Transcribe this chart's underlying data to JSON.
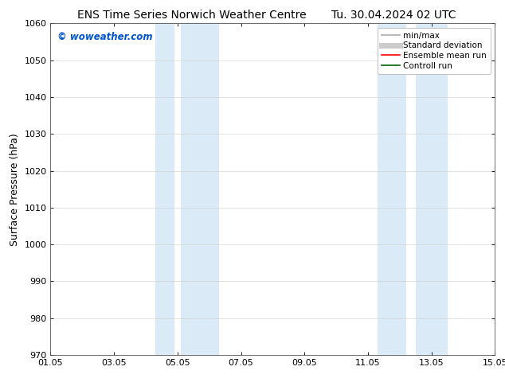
{
  "title_left": "ENS Time Series Norwich Weather Centre",
  "title_right": "Tu. 30.04.2024 02 UTC",
  "ylabel": "Surface Pressure (hPa)",
  "ylim": [
    970,
    1060
  ],
  "yticks": [
    970,
    980,
    990,
    1000,
    1010,
    1020,
    1030,
    1040,
    1050,
    1060
  ],
  "xlim_start": 0,
  "xlim_end": 14,
  "xtick_labels": [
    "01.05",
    "03.05",
    "05.05",
    "07.05",
    "09.05",
    "11.05",
    "13.05",
    "15.05"
  ],
  "xtick_positions": [
    0,
    2,
    4,
    6,
    8,
    10,
    12,
    14
  ],
  "shaded_regions": [
    {
      "x_start": 3.3,
      "x_end": 3.9,
      "color": "#daeaf6"
    },
    {
      "x_start": 4.1,
      "x_end": 5.3,
      "color": "#daeaf6"
    },
    {
      "x_start": 10.3,
      "x_end": 11.2,
      "color": "#daeaf6"
    },
    {
      "x_start": 11.5,
      "x_end": 12.5,
      "color": "#daeaf6"
    }
  ],
  "watermark_text": "© woweather.com",
  "watermark_color": "#0055cc",
  "legend_items": [
    {
      "label": "min/max",
      "color": "#aaaaaa",
      "lw": 1.2
    },
    {
      "label": "Standard deviation",
      "color": "#cccccc",
      "lw": 5
    },
    {
      "label": "Ensemble mean run",
      "color": "#ff0000",
      "lw": 1.2
    },
    {
      "label": "Controll run",
      "color": "#006600",
      "lw": 1.2
    }
  ],
  "bg_color": "#ffffff",
  "grid_color": "#cccccc",
  "title_fontsize": 10,
  "ylabel_fontsize": 9,
  "tick_fontsize": 8,
  "legend_fontsize": 7.5,
  "watermark_fontsize": 8.5
}
